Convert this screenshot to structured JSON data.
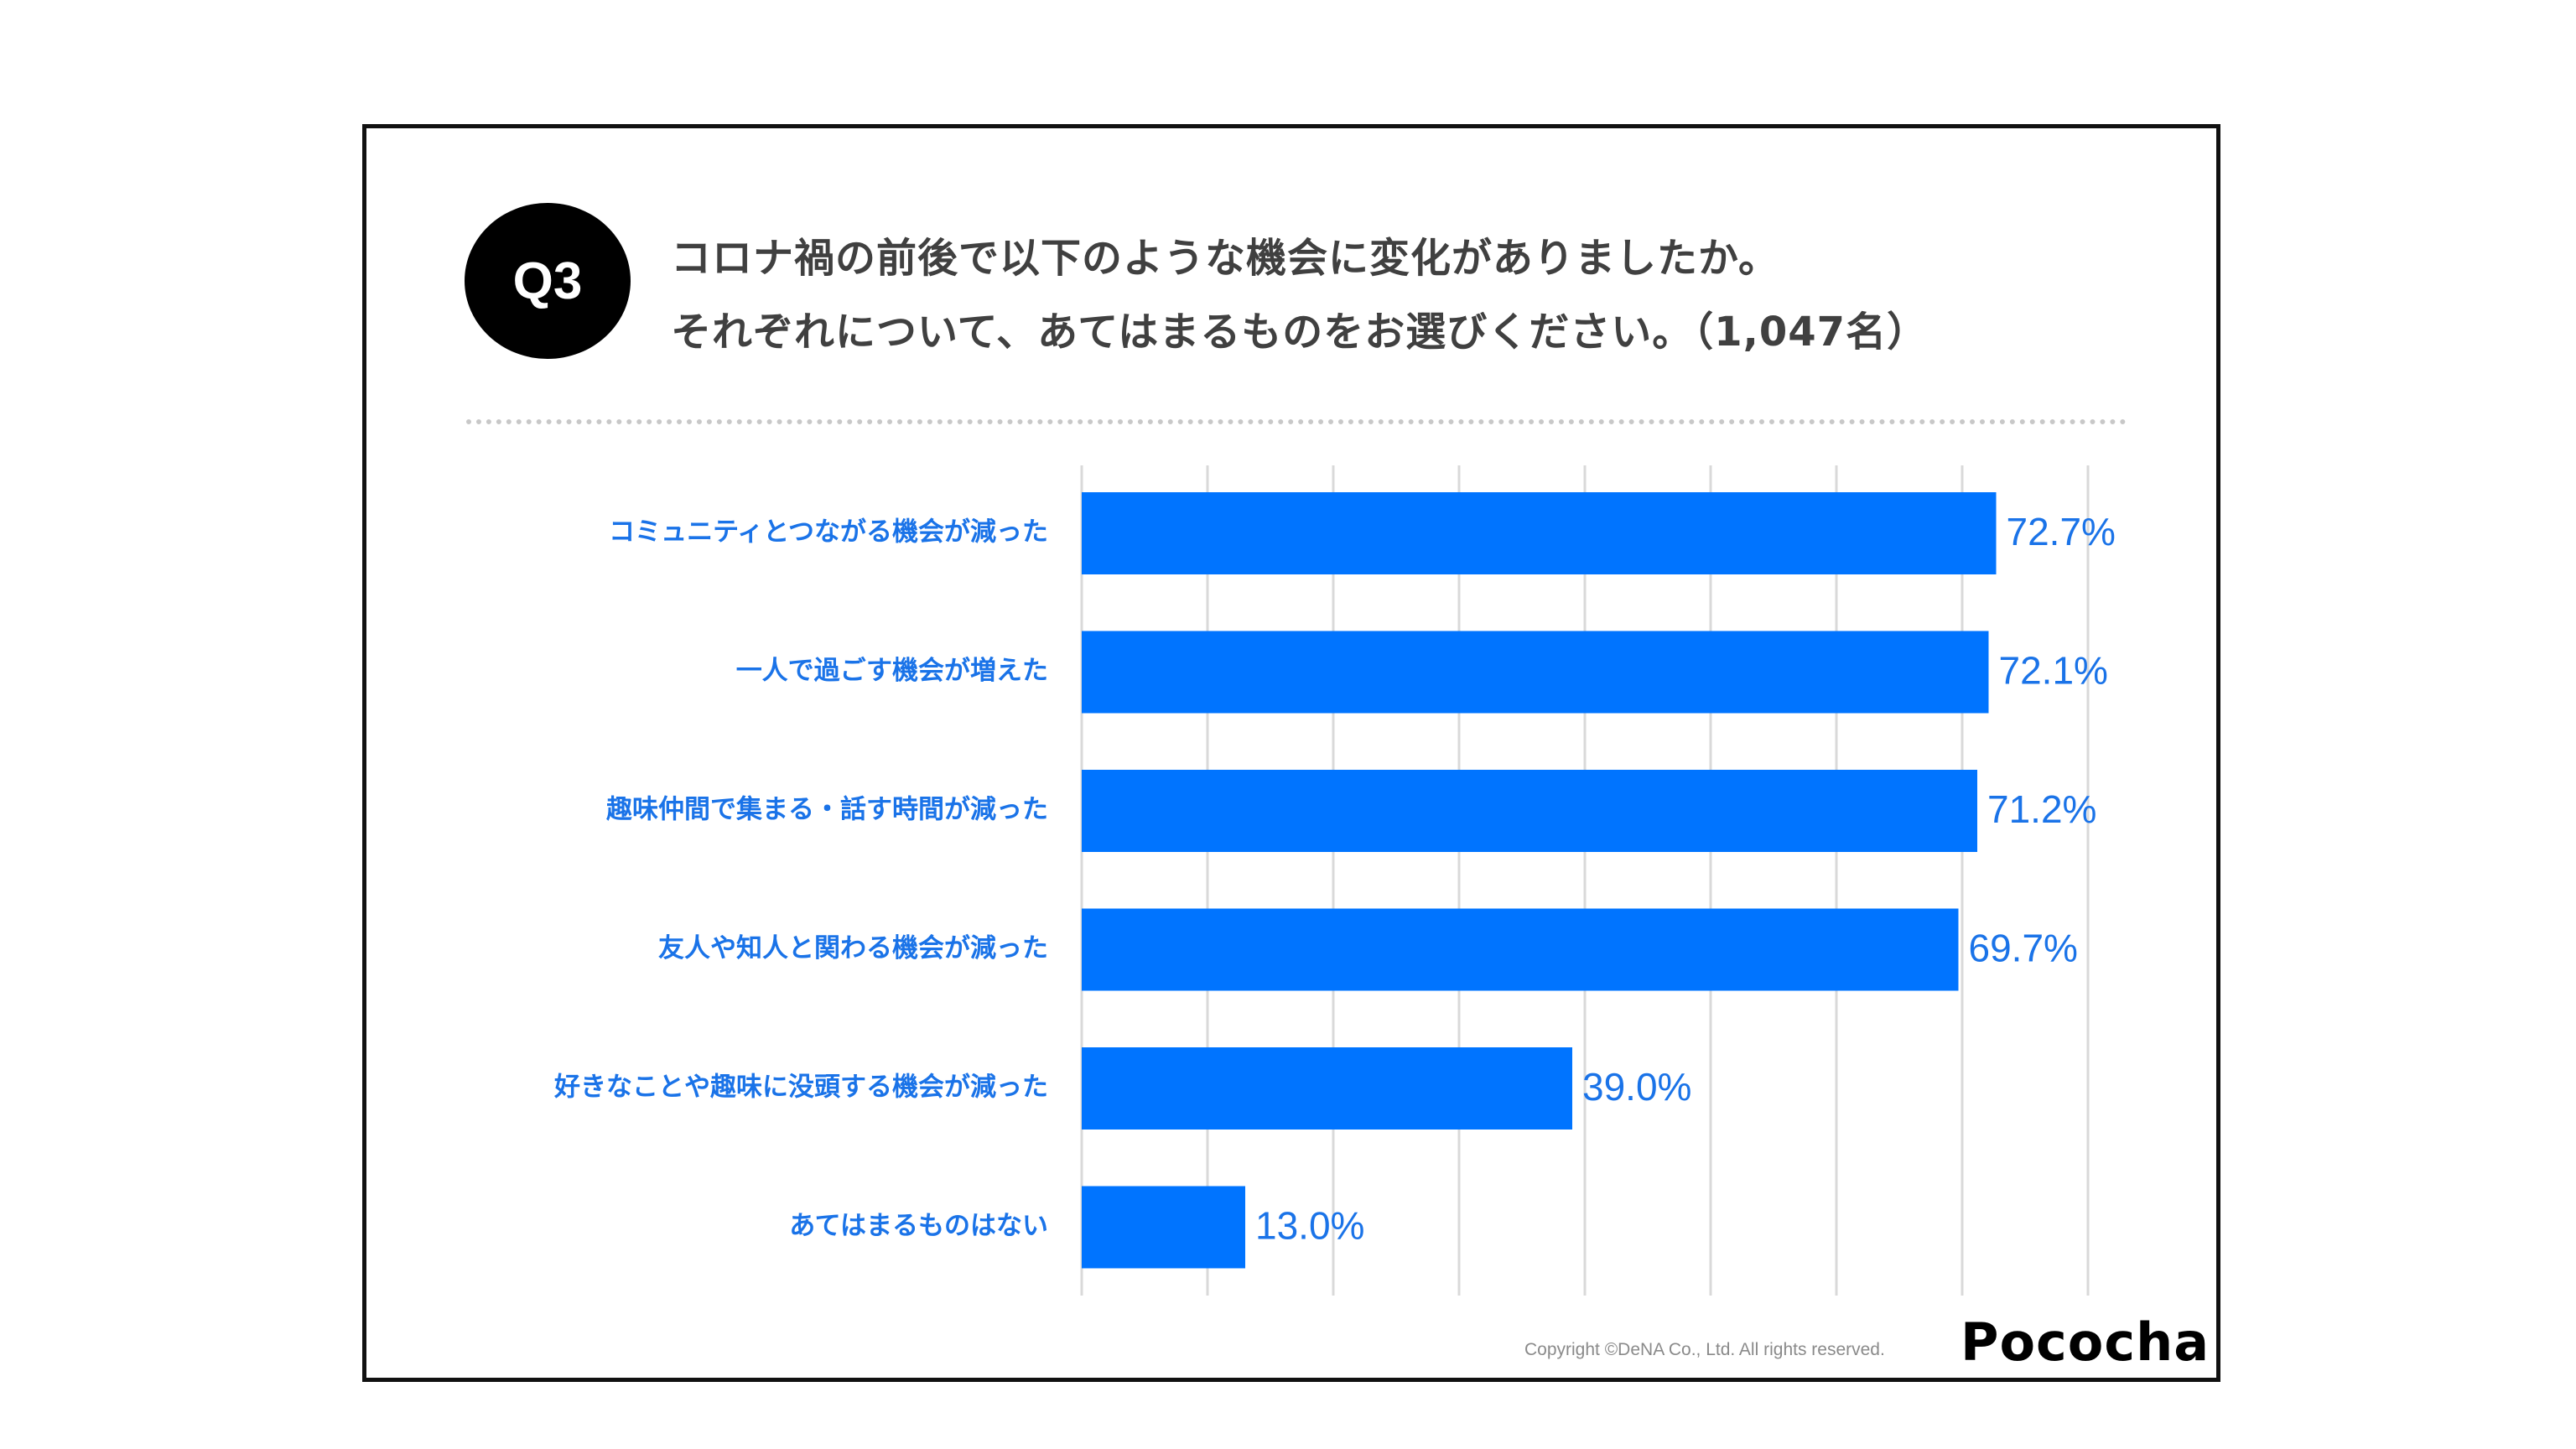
{
  "question": {
    "badge": "Q3",
    "line1": "コロナ禍の前後で以下のような機会に変化がありましたか。",
    "line2": "それぞれについて、あてはまるものをお選びください。（1,047名）"
  },
  "chart_data": {
    "type": "bar",
    "orientation": "horizontal",
    "categories": [
      "コミュニティとつながる機会が減った",
      "一人で過ごす機会が増えた",
      "趣味仲間で集まる・話す時間が減った",
      "友人や知人と関わる機会が減った",
      "好きなことや趣味に没頭する機会が減った",
      "あてはまるものはない"
    ],
    "values": [
      72.7,
      72.1,
      71.2,
      69.7,
      39.0,
      13.0
    ],
    "value_labels": [
      "72.7%",
      "72.1%",
      "71.2%",
      "69.7%",
      "39.0%",
      "13.0%"
    ],
    "xlim": [
      0,
      80
    ],
    "grid_step": 10,
    "grid": true,
    "bar_color": "#0074ff",
    "label_color": "#1a73e8"
  },
  "footer": {
    "copyright": "Copyright ©DeNA Co., Ltd. All rights reserved.",
    "logo": "Pococha"
  }
}
